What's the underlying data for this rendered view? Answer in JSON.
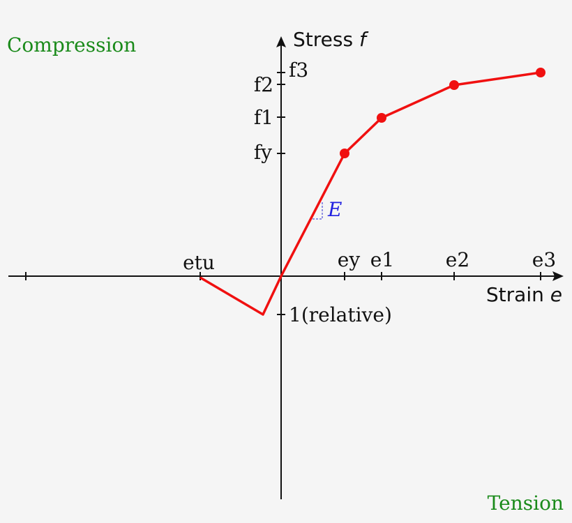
{
  "corner_labels": {
    "top_left": "Compression",
    "bottom_right": "Tension"
  },
  "y_axis": {
    "title": "Stress",
    "symbol": "f",
    "ticks": [
      "f3",
      "f2",
      "f1",
      "fy"
    ],
    "negative_tick": "1(relative)"
  },
  "x_axis": {
    "title": "Strain",
    "symbol": "e",
    "negative_tick": "etu",
    "ticks": [
      "ey",
      "e1",
      "e2",
      "e3"
    ]
  },
  "slope_label": "E"
}
